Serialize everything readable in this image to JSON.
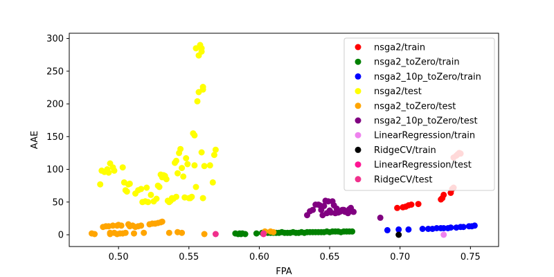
{
  "chart_data": {
    "type": "scatter",
    "title": "",
    "xlabel": "FPA",
    "ylabel": "AAE",
    "xlim": [
      0.465,
      0.77
    ],
    "ylim": [
      -18,
      308
    ],
    "xticks": [
      0.5,
      0.55,
      0.6,
      0.65,
      0.7,
      0.75
    ],
    "xtick_labels": [
      "0.50",
      "0.55",
      "0.60",
      "0.65",
      "0.70",
      "0.75"
    ],
    "yticks": [
      0,
      50,
      100,
      150,
      200,
      250,
      300
    ],
    "ytick_labels": [
      "0",
      "50",
      "100",
      "150",
      "200",
      "250",
      "300"
    ],
    "grid": false,
    "legend_position": "top-right",
    "series": [
      {
        "name": "nsga2/train",
        "color": "#ff0000",
        "points": [
          [
            0.698,
            41
          ],
          [
            0.702,
            42
          ],
          [
            0.704,
            43
          ],
          [
            0.706,
            45
          ],
          [
            0.708,
            46
          ],
          [
            0.713,
            47
          ],
          [
            0.729,
            54
          ],
          [
            0.73,
            56
          ],
          [
            0.731,
            61
          ],
          [
            0.736,
            64
          ],
          [
            0.737,
            70
          ],
          [
            0.738,
            72
          ],
          [
            0.738,
            118
          ],
          [
            0.74,
            121
          ],
          [
            0.741,
            123
          ],
          [
            0.742,
            125
          ],
          [
            0.743,
            124
          ]
        ]
      },
      {
        "name": "nsga2_toZero/train",
        "color": "#008000",
        "points": [
          [
            0.583,
            2
          ],
          [
            0.585,
            1
          ],
          [
            0.586,
            2
          ],
          [
            0.587,
            1
          ],
          [
            0.588,
            2
          ],
          [
            0.59,
            1
          ],
          [
            0.598,
            2
          ],
          [
            0.602,
            3
          ],
          [
            0.604,
            4
          ],
          [
            0.606,
            3
          ],
          [
            0.608,
            3
          ],
          [
            0.61,
            3
          ],
          [
            0.612,
            3
          ],
          [
            0.614,
            3
          ],
          [
            0.616,
            4
          ],
          [
            0.618,
            3
          ],
          [
            0.62,
            3
          ],
          [
            0.622,
            3
          ],
          [
            0.624,
            4
          ],
          [
            0.626,
            3
          ],
          [
            0.628,
            3
          ],
          [
            0.63,
            4
          ],
          [
            0.632,
            3
          ],
          [
            0.634,
            4
          ],
          [
            0.636,
            4
          ],
          [
            0.638,
            4
          ],
          [
            0.64,
            4
          ],
          [
            0.642,
            4
          ],
          [
            0.644,
            4
          ],
          [
            0.646,
            4
          ],
          [
            0.648,
            5
          ],
          [
            0.65,
            4
          ],
          [
            0.652,
            5
          ],
          [
            0.654,
            5
          ],
          [
            0.656,
            5
          ],
          [
            0.658,
            4
          ],
          [
            0.66,
            5
          ],
          [
            0.662,
            5
          ],
          [
            0.664,
            5
          ],
          [
            0.666,
            5
          ]
        ]
      },
      {
        "name": "nsga2_10p_toZero/train",
        "color": "#0000ff",
        "points": [
          [
            0.691,
            7
          ],
          [
            0.699,
            8
          ],
          [
            0.706,
            8
          ],
          [
            0.716,
            9
          ],
          [
            0.72,
            9
          ],
          [
            0.723,
            9
          ],
          [
            0.726,
            10
          ],
          [
            0.729,
            10
          ],
          [
            0.731,
            10
          ],
          [
            0.734,
            10
          ],
          [
            0.736,
            11
          ],
          [
            0.74,
            11
          ],
          [
            0.743,
            12
          ],
          [
            0.745,
            12
          ],
          [
            0.749,
            13
          ],
          [
            0.751,
            13
          ],
          [
            0.753,
            14
          ]
        ]
      },
      {
        "name": "nsga2/test",
        "color": "#ffff00",
        "points": [
          [
            0.487,
            77
          ],
          [
            0.488,
            98
          ],
          [
            0.49,
            96
          ],
          [
            0.492,
            100
          ],
          [
            0.493,
            95
          ],
          [
            0.494,
            109
          ],
          [
            0.496,
            103
          ],
          [
            0.497,
            98
          ],
          [
            0.503,
            103
          ],
          [
            0.504,
            80
          ],
          [
            0.505,
            68
          ],
          [
            0.506,
            66
          ],
          [
            0.507,
            77
          ],
          [
            0.508,
            78
          ],
          [
            0.512,
            63
          ],
          [
            0.514,
            68
          ],
          [
            0.516,
            70
          ],
          [
            0.517,
            50
          ],
          [
            0.519,
            51
          ],
          [
            0.52,
            72
          ],
          [
            0.521,
            50
          ],
          [
            0.523,
            61
          ],
          [
            0.525,
            51
          ],
          [
            0.527,
            55
          ],
          [
            0.528,
            75
          ],
          [
            0.529,
            73
          ],
          [
            0.53,
            92
          ],
          [
            0.531,
            88
          ],
          [
            0.532,
            91
          ],
          [
            0.533,
            90
          ],
          [
            0.534,
            85
          ],
          [
            0.535,
            52
          ],
          [
            0.536,
            50
          ],
          [
            0.537,
            52
          ],
          [
            0.538,
            56
          ],
          [
            0.539,
            55
          ],
          [
            0.54,
            110
          ],
          [
            0.541,
            58
          ],
          [
            0.541,
            113
          ],
          [
            0.542,
            94
          ],
          [
            0.543,
            125
          ],
          [
            0.544,
            131
          ],
          [
            0.545,
            102
          ],
          [
            0.546,
            89
          ],
          [
            0.547,
            57
          ],
          [
            0.548,
            117
          ],
          [
            0.549,
            108
          ],
          [
            0.55,
            56
          ],
          [
            0.551,
            56
          ],
          [
            0.552,
            58
          ],
          [
            0.553,
            155
          ],
          [
            0.554,
            152
          ],
          [
            0.554,
            106
          ],
          [
            0.555,
            73
          ],
          [
            0.555,
            285
          ],
          [
            0.556,
            204
          ],
          [
            0.557,
            274
          ],
          [
            0.557,
            218
          ],
          [
            0.558,
            290
          ],
          [
            0.559,
            285
          ],
          [
            0.559,
            280
          ],
          [
            0.56,
            222
          ],
          [
            0.56,
            226
          ],
          [
            0.559,
            126
          ],
          [
            0.56,
            56
          ],
          [
            0.561,
            105
          ],
          [
            0.565,
            106
          ],
          [
            0.567,
            80
          ],
          [
            0.568,
            122
          ],
          [
            0.569,
            130
          ]
        ]
      },
      {
        "name": "nsga2_toZero/test",
        "color": "#ffa500",
        "points": [
          [
            0.481,
            2
          ],
          [
            0.483,
            1
          ],
          [
            0.489,
            12
          ],
          [
            0.491,
            13
          ],
          [
            0.493,
            13
          ],
          [
            0.494,
            3
          ],
          [
            0.496,
            14
          ],
          [
            0.494,
            1
          ],
          [
            0.497,
            3
          ],
          [
            0.499,
            14
          ],
          [
            0.5,
            15
          ],
          [
            0.502,
            14
          ],
          [
            0.499,
            1
          ],
          [
            0.501,
            2
          ],
          [
            0.503,
            2
          ],
          [
            0.505,
            3
          ],
          [
            0.507,
            16
          ],
          [
            0.508,
            13
          ],
          [
            0.51,
            14
          ],
          [
            0.511,
            2
          ],
          [
            0.512,
            12
          ],
          [
            0.514,
            13
          ],
          [
            0.516,
            14
          ],
          [
            0.518,
            3
          ],
          [
            0.522,
            16
          ],
          [
            0.524,
            17
          ],
          [
            0.526,
            17
          ],
          [
            0.528,
            18
          ],
          [
            0.53,
            19
          ],
          [
            0.531,
            20
          ],
          [
            0.536,
            3
          ],
          [
            0.542,
            4
          ],
          [
            0.545,
            3
          ],
          [
            0.561,
            1
          ],
          [
            0.604,
            5
          ],
          [
            0.608,
            5
          ],
          [
            0.61,
            4
          ]
        ]
      },
      {
        "name": "nsga2_10p_toZero/test",
        "color": "#800080",
        "points": [
          [
            0.634,
            30
          ],
          [
            0.636,
            36
          ],
          [
            0.638,
            38
          ],
          [
            0.64,
            46
          ],
          [
            0.642,
            46
          ],
          [
            0.643,
            45
          ],
          [
            0.644,
            38
          ],
          [
            0.645,
            30
          ],
          [
            0.646,
            44
          ],
          [
            0.647,
            52
          ],
          [
            0.648,
            33
          ],
          [
            0.649,
            51
          ],
          [
            0.65,
            37
          ],
          [
            0.651,
            34
          ],
          [
            0.652,
            51
          ],
          [
            0.653,
            45
          ],
          [
            0.654,
            33
          ],
          [
            0.655,
            40
          ],
          [
            0.656,
            34
          ],
          [
            0.657,
            35
          ],
          [
            0.658,
            36
          ],
          [
            0.659,
            38
          ],
          [
            0.66,
            38
          ],
          [
            0.661,
            35
          ],
          [
            0.662,
            36
          ],
          [
            0.663,
            33
          ],
          [
            0.664,
            39
          ],
          [
            0.665,
            41
          ],
          [
            0.666,
            36
          ],
          [
            0.667,
            35
          ],
          [
            0.686,
            26
          ]
        ]
      },
      {
        "name": "LinearRegression/train",
        "color": "#ee82ee",
        "points": [
          [
            0.731,
            0
          ]
        ]
      },
      {
        "name": "RidgeCV/train",
        "color": "#000000",
        "points": [
          [
            0.699,
            0
          ]
        ]
      },
      {
        "name": "LinearRegression/test",
        "color": "#ff1493",
        "points": [
          [
            0.603,
            1
          ]
        ]
      },
      {
        "name": "RidgeCV/test",
        "color": "#f0308c",
        "points": [
          [
            0.569,
            1
          ],
          [
            0.603,
            2
          ]
        ]
      }
    ]
  }
}
